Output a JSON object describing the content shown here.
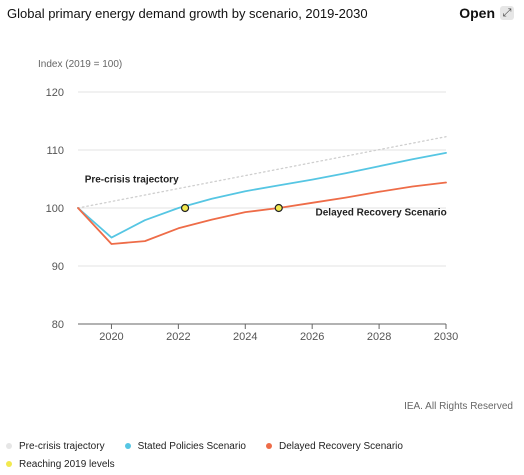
{
  "header": {
    "title": "Global primary energy demand growth by scenario, 2019-2030",
    "open_label": "Open",
    "open_icon": "expand-icon"
  },
  "credit": "IEA. All Rights Reserved",
  "colors": {
    "pre_crisis": "#cfcfcf",
    "stated": "#56c6e3",
    "delayed": "#ee6c48",
    "marker": "#f2e94e",
    "grid": "#e3e3e3",
    "axis": "#666666"
  },
  "chart_data": {
    "type": "line",
    "ylabel": "Index (2019 = 100)",
    "xlim": [
      2019,
      2030
    ],
    "ylim": [
      80,
      120
    ],
    "yticks": [
      80,
      90,
      100,
      110,
      120
    ],
    "xticks": [
      2020,
      2022,
      2024,
      2026,
      2028,
      2030
    ],
    "grid": true,
    "series": [
      {
        "name": "Pre-crisis trajectory",
        "style": "dotted",
        "x": [
          2019,
          2030
        ],
        "y": [
          100,
          112.3
        ]
      },
      {
        "name": "Stated Policies Scenario",
        "x": [
          2019,
          2020,
          2021,
          2022,
          2023,
          2024,
          2025,
          2026,
          2027,
          2028,
          2029,
          2030
        ],
        "y": [
          100,
          94.9,
          97.9,
          100,
          101.6,
          102.9,
          103.9,
          104.9,
          106,
          107.2,
          108.4,
          109.5
        ]
      },
      {
        "name": "Delayed Recovery Scenario",
        "x": [
          2019,
          2020,
          2021,
          2022,
          2023,
          2024,
          2025,
          2026,
          2027,
          2028,
          2029,
          2030
        ],
        "y": [
          100,
          93.8,
          94.3,
          96.5,
          98,
          99.3,
          100,
          100.9,
          101.8,
          102.8,
          103.7,
          104.4
        ]
      }
    ],
    "markers": {
      "name": "Reaching 2019 levels",
      "points": [
        {
          "x": 2022.2,
          "y": 100
        },
        {
          "x": 2025,
          "y": 100
        }
      ]
    },
    "annotations": [
      {
        "text": "Pre-crisis trajectory",
        "x": 2019.2,
        "y": 104.4
      },
      {
        "text": "Delayed Recovery Scenario",
        "x": 2026.1,
        "y": 98.7
      }
    ]
  },
  "legend": [
    {
      "label": "Pre-crisis trajectory",
      "color": "#e6e6e6"
    },
    {
      "label": "Stated Policies Scenario",
      "color": "#56c6e3"
    },
    {
      "label": "Delayed Recovery Scenario",
      "color": "#ee6c48"
    },
    {
      "label": "Reaching 2019 levels",
      "color": "#f2e94e"
    }
  ]
}
